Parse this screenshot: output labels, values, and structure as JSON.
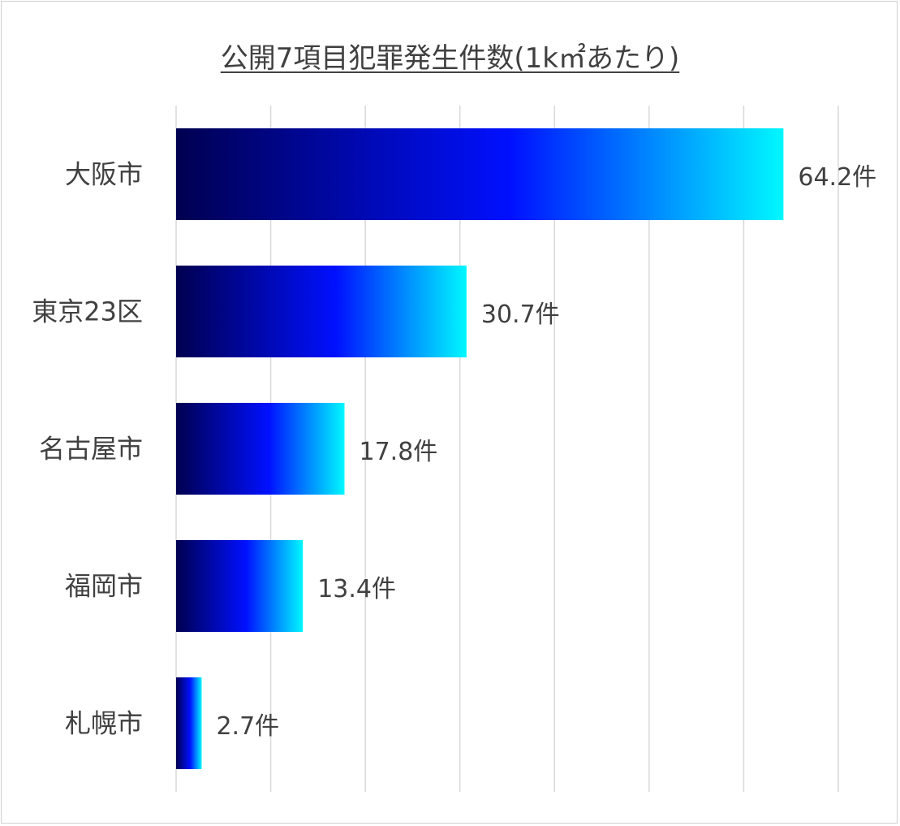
{
  "chart_data": {
    "type": "bar",
    "orientation": "horizontal",
    "title": "公開7項目犯罪発生件数(1k㎡あたり)",
    "categories": [
      "大阪市",
      "東京23区",
      "名古屋市",
      "福岡市",
      "札幌市"
    ],
    "values": [
      64.2,
      30.7,
      17.8,
      13.4,
      2.7
    ],
    "value_labels": [
      "64.2件",
      "30.7件",
      "17.8件",
      "13.4件",
      "2.7件"
    ],
    "xlim": [
      0,
      70
    ],
    "grid": true,
    "legend": false,
    "colors": {
      "gradient_start": "#000050",
      "gradient_mid": "#0010ff",
      "gradient_end": "#00f8ff",
      "grid": "#d9d9d9",
      "text": "#404040"
    }
  }
}
